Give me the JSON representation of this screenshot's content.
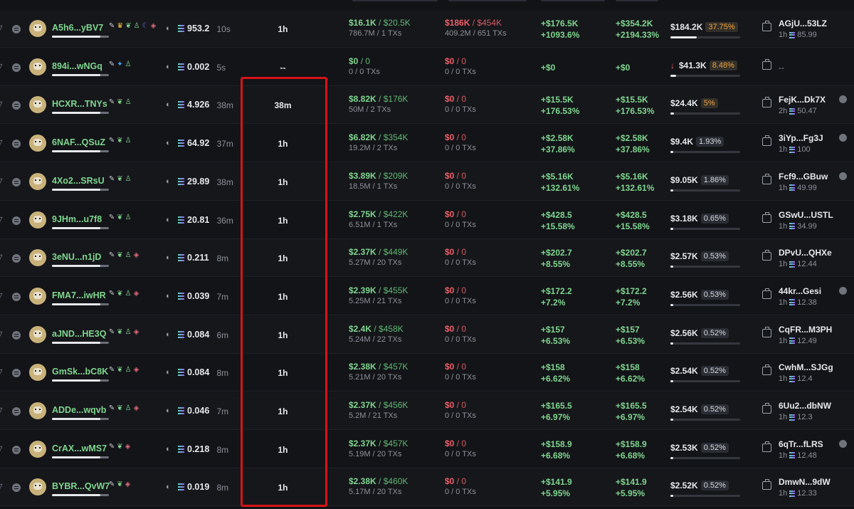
{
  "rows": [
    {
      "address": "A5h6...yBV7",
      "badges": [
        "edit",
        "crown",
        "leaf",
        "user",
        "moon",
        "stack"
      ],
      "source": "source-icon",
      "amount": "953.2",
      "age": "10s",
      "time": "1h",
      "bought_usd": "$16.1K",
      "bought_total": "$20.5K",
      "bought_sub": "786.7M / 1 TXs",
      "sold_usd": "$186K",
      "sold_total": "$454K",
      "sold_sub": "409.2M / 651 TXs",
      "pnl1_a": "+$176.5K",
      "pnl1_b": "+1093.6%",
      "pnl2_a": "+$354.2K",
      "pnl2_b": "+2194.33%",
      "holding": "$184.2K",
      "holding_pct": "37.75%",
      "holding_down": false,
      "holding_fill": 0.38,
      "funding_addr": "AGjU...53LZ",
      "funding_age": "1h",
      "funding_amount": "85.99",
      "funding_status": false
    },
    {
      "address": "894i...wNGq",
      "badges": [
        "edit",
        "drop",
        "user"
      ],
      "source": "source-icon",
      "amount": "0.002",
      "age": "5s",
      "time": "--",
      "bought_usd": "$0",
      "bought_total": "0",
      "bought_sub": "0 / 0 TXs",
      "sold_usd": "$0",
      "sold_total": "0",
      "sold_sub": "0 / 0 TXs",
      "pnl1_a": "+$0",
      "pnl1_b": "",
      "pnl2_a": "+$0",
      "pnl2_b": "",
      "holding": "$41.3K",
      "holding_pct": "8.48%",
      "holding_down": true,
      "holding_fill": 0.08,
      "funding_addr": "--",
      "funding_age": "",
      "funding_amount": "",
      "funding_status": false
    },
    {
      "address": "HCXR...TNYs",
      "badges": [
        "edit",
        "leaf",
        "user"
      ],
      "source": "source-icon",
      "amount": "4.926",
      "age": "38m",
      "time": "38m",
      "bought_usd": "$8.82K",
      "bought_total": "$176K",
      "bought_sub": "50M / 2 TXs",
      "sold_usd": "$0",
      "sold_total": "0",
      "sold_sub": "0 / 0 TXs",
      "pnl1_a": "+$15.5K",
      "pnl1_b": "+176.53%",
      "pnl2_a": "+$15.5K",
      "pnl2_b": "+176.53%",
      "holding": "$24.4K",
      "holding_pct": "5%",
      "holding_down": false,
      "holding_fill": 0.05,
      "funding_addr": "FejK...Dk7X",
      "funding_age": "2h",
      "funding_amount": "50.47",
      "funding_status": true
    },
    {
      "address": "6NAF...QSuZ",
      "badges": [
        "edit",
        "leaf",
        "user"
      ],
      "source": "source-icon",
      "amount": "64.92",
      "age": "37m",
      "time": "1h",
      "bought_usd": "$6.82K",
      "bought_total": "$354K",
      "bought_sub": "19.2M / 2 TXs",
      "sold_usd": "$0",
      "sold_total": "0",
      "sold_sub": "0 / 0 TXs",
      "pnl1_a": "+$2.58K",
      "pnl1_b": "+37.86%",
      "pnl2_a": "+$2.58K",
      "pnl2_b": "+37.86%",
      "holding": "$9.4K",
      "holding_pct": "1.93%",
      "holding_down": false,
      "holding_fill": 0.02,
      "funding_addr": "3iYp...Fg3J",
      "funding_age": "1h",
      "funding_amount": "100",
      "funding_status": true
    },
    {
      "address": "4Xo2...SRsU",
      "badges": [
        "edit",
        "leaf",
        "user"
      ],
      "source": "source-icon",
      "amount": "29.89",
      "age": "38m",
      "time": "1h",
      "bought_usd": "$3.89K",
      "bought_total": "$209K",
      "bought_sub": "18.5M / 1 TXs",
      "sold_usd": "$0",
      "sold_total": "0",
      "sold_sub": "0 / 0 TXs",
      "pnl1_a": "+$5.16K",
      "pnl1_b": "+132.61%",
      "pnl2_a": "+$5.16K",
      "pnl2_b": "+132.61%",
      "holding": "$9.05K",
      "holding_pct": "1.86%",
      "holding_down": false,
      "holding_fill": 0.02,
      "funding_addr": "Fcf9...GBuw",
      "funding_age": "1h",
      "funding_amount": "49.99",
      "funding_status": true
    },
    {
      "address": "9JHm...u7f8",
      "badges": [
        "edit",
        "leaf",
        "user"
      ],
      "source": "source-icon",
      "amount": "20.81",
      "age": "36m",
      "time": "1h",
      "bought_usd": "$2.75K",
      "bought_total": "$422K",
      "bought_sub": "6.51M / 1 TXs",
      "sold_usd": "$0",
      "sold_total": "0",
      "sold_sub": "0 / 0 TXs",
      "pnl1_a": "+$428.5",
      "pnl1_b": "+15.58%",
      "pnl2_a": "+$428.5",
      "pnl2_b": "+15.58%",
      "holding": "$3.18K",
      "holding_pct": "0.65%",
      "holding_down": false,
      "holding_fill": 0.01,
      "funding_addr": "GSwU...USTL",
      "funding_age": "1h",
      "funding_amount": "34.99",
      "funding_status": false
    },
    {
      "address": "3eNU...n1jD",
      "badges": [
        "edit",
        "leaf",
        "user",
        "stack"
      ],
      "source": "source-icon",
      "amount": "0.211",
      "age": "8m",
      "time": "1h",
      "bought_usd": "$2.37K",
      "bought_total": "$449K",
      "bought_sub": "5.27M / 20 TXs",
      "sold_usd": "$0",
      "sold_total": "0",
      "sold_sub": "0 / 0 TXs",
      "pnl1_a": "+$202.7",
      "pnl1_b": "+8.55%",
      "pnl2_a": "+$202.7",
      "pnl2_b": "+8.55%",
      "holding": "$2.57K",
      "holding_pct": "0.53%",
      "holding_down": false,
      "holding_fill": 0.01,
      "funding_addr": "DPvU...QHXe",
      "funding_age": "1h",
      "funding_amount": "12.44",
      "funding_status": false
    },
    {
      "address": "FMA7...iwHR",
      "badges": [
        "edit",
        "leaf",
        "user",
        "stack"
      ],
      "source": "source-icon",
      "amount": "0.039",
      "age": "7m",
      "time": "1h",
      "bought_usd": "$2.39K",
      "bought_total": "$455K",
      "bought_sub": "5.25M / 21 TXs",
      "sold_usd": "$0",
      "sold_total": "0",
      "sold_sub": "0 / 0 TXs",
      "pnl1_a": "+$172.2",
      "pnl1_b": "+7.2%",
      "pnl2_a": "+$172.2",
      "pnl2_b": "+7.2%",
      "holding": "$2.56K",
      "holding_pct": "0.53%",
      "holding_down": false,
      "holding_fill": 0.01,
      "funding_addr": "44kr...Gesi",
      "funding_age": "1h",
      "funding_amount": "12.38",
      "funding_status": true
    },
    {
      "address": "aJND...HE3Q",
      "badges": [
        "edit",
        "leaf",
        "user",
        "stack"
      ],
      "source": "source-icon",
      "amount": "0.084",
      "age": "6m",
      "time": "1h",
      "bought_usd": "$2.4K",
      "bought_total": "$458K",
      "bought_sub": "5.24M / 22 TXs",
      "sold_usd": "$0",
      "sold_total": "0",
      "sold_sub": "0 / 0 TXs",
      "pnl1_a": "+$157",
      "pnl1_b": "+6.53%",
      "pnl2_a": "+$157",
      "pnl2_b": "+6.53%",
      "holding": "$2.56K",
      "holding_pct": "0.52%",
      "holding_down": false,
      "holding_fill": 0.01,
      "funding_addr": "CqFR...M3PH",
      "funding_age": "1h",
      "funding_amount": "12.49",
      "funding_status": false
    },
    {
      "address": "GmSk...bC8K",
      "badges": [
        "edit",
        "leaf",
        "user",
        "stack"
      ],
      "source": "source-icon",
      "amount": "0.084",
      "age": "8m",
      "time": "1h",
      "bought_usd": "$2.38K",
      "bought_total": "$457K",
      "bought_sub": "5.21M / 20 TXs",
      "sold_usd": "$0",
      "sold_total": "0",
      "sold_sub": "0 / 0 TXs",
      "pnl1_a": "+$158",
      "pnl1_b": "+6.62%",
      "pnl2_a": "+$158",
      "pnl2_b": "+6.62%",
      "holding": "$2.54K",
      "holding_pct": "0.52%",
      "holding_down": false,
      "holding_fill": 0.01,
      "funding_addr": "CwhM...SJGg",
      "funding_age": "1h",
      "funding_amount": "12.4",
      "funding_status": false
    },
    {
      "address": "ADDe...wqvb",
      "badges": [
        "edit",
        "leaf",
        "user",
        "stack"
      ],
      "source": "source-icon",
      "amount": "0.046",
      "age": "7m",
      "time": "1h",
      "bought_usd": "$2.37K",
      "bought_total": "$456K",
      "bought_sub": "5.2M / 21 TXs",
      "sold_usd": "$0",
      "sold_total": "0",
      "sold_sub": "0 / 0 TXs",
      "pnl1_a": "+$165.5",
      "pnl1_b": "+6.97%",
      "pnl2_a": "+$165.5",
      "pnl2_b": "+6.97%",
      "holding": "$2.54K",
      "holding_pct": "0.52%",
      "holding_down": false,
      "holding_fill": 0.01,
      "funding_addr": "6Uu2...dbNW",
      "funding_age": "1h",
      "funding_amount": "12.3",
      "funding_status": false
    },
    {
      "address": "CrAX...wMS7",
      "badges": [
        "edit",
        "leaf",
        "stack"
      ],
      "source": "source-icon",
      "amount": "0.218",
      "age": "8m",
      "time": "1h",
      "bought_usd": "$2.37K",
      "bought_total": "$457K",
      "bought_sub": "5.19M / 20 TXs",
      "sold_usd": "$0",
      "sold_total": "0",
      "sold_sub": "0 / 0 TXs",
      "pnl1_a": "+$158.9",
      "pnl1_b": "+6.68%",
      "pnl2_a": "+$158.9",
      "pnl2_b": "+6.68%",
      "holding": "$2.53K",
      "holding_pct": "0.52%",
      "holding_down": false,
      "holding_fill": 0.01,
      "funding_addr": "6qTr...fLRS",
      "funding_age": "1h",
      "funding_amount": "12.48",
      "funding_status": true
    },
    {
      "address": "BYBR...QvW7",
      "badges": [
        "edit",
        "leaf",
        "stack"
      ],
      "source": "source-icon",
      "amount": "0.019",
      "age": "8m",
      "time": "1h",
      "bought_usd": "$2.38K",
      "bought_total": "$460K",
      "bought_sub": "5.17M / 20 TXs",
      "sold_usd": "$0",
      "sold_total": "0",
      "sold_sub": "0 / 0 TXs",
      "pnl1_a": "+$141.9",
      "pnl1_b": "+5.95%",
      "pnl2_a": "+$141.9",
      "pnl2_b": "+5.95%",
      "holding": "$2.52K",
      "holding_pct": "0.52%",
      "holding_down": false,
      "holding_fill": 0.01,
      "funding_addr": "DmwN...9dW",
      "funding_age": "1h",
      "funding_amount": "12.33",
      "funding_status": false
    }
  ],
  "colors": {
    "positive": "#7fd68f",
    "negative": "#ef5f69",
    "highlight": "#d81417",
    "warning_pct": "#f0a23a"
  }
}
